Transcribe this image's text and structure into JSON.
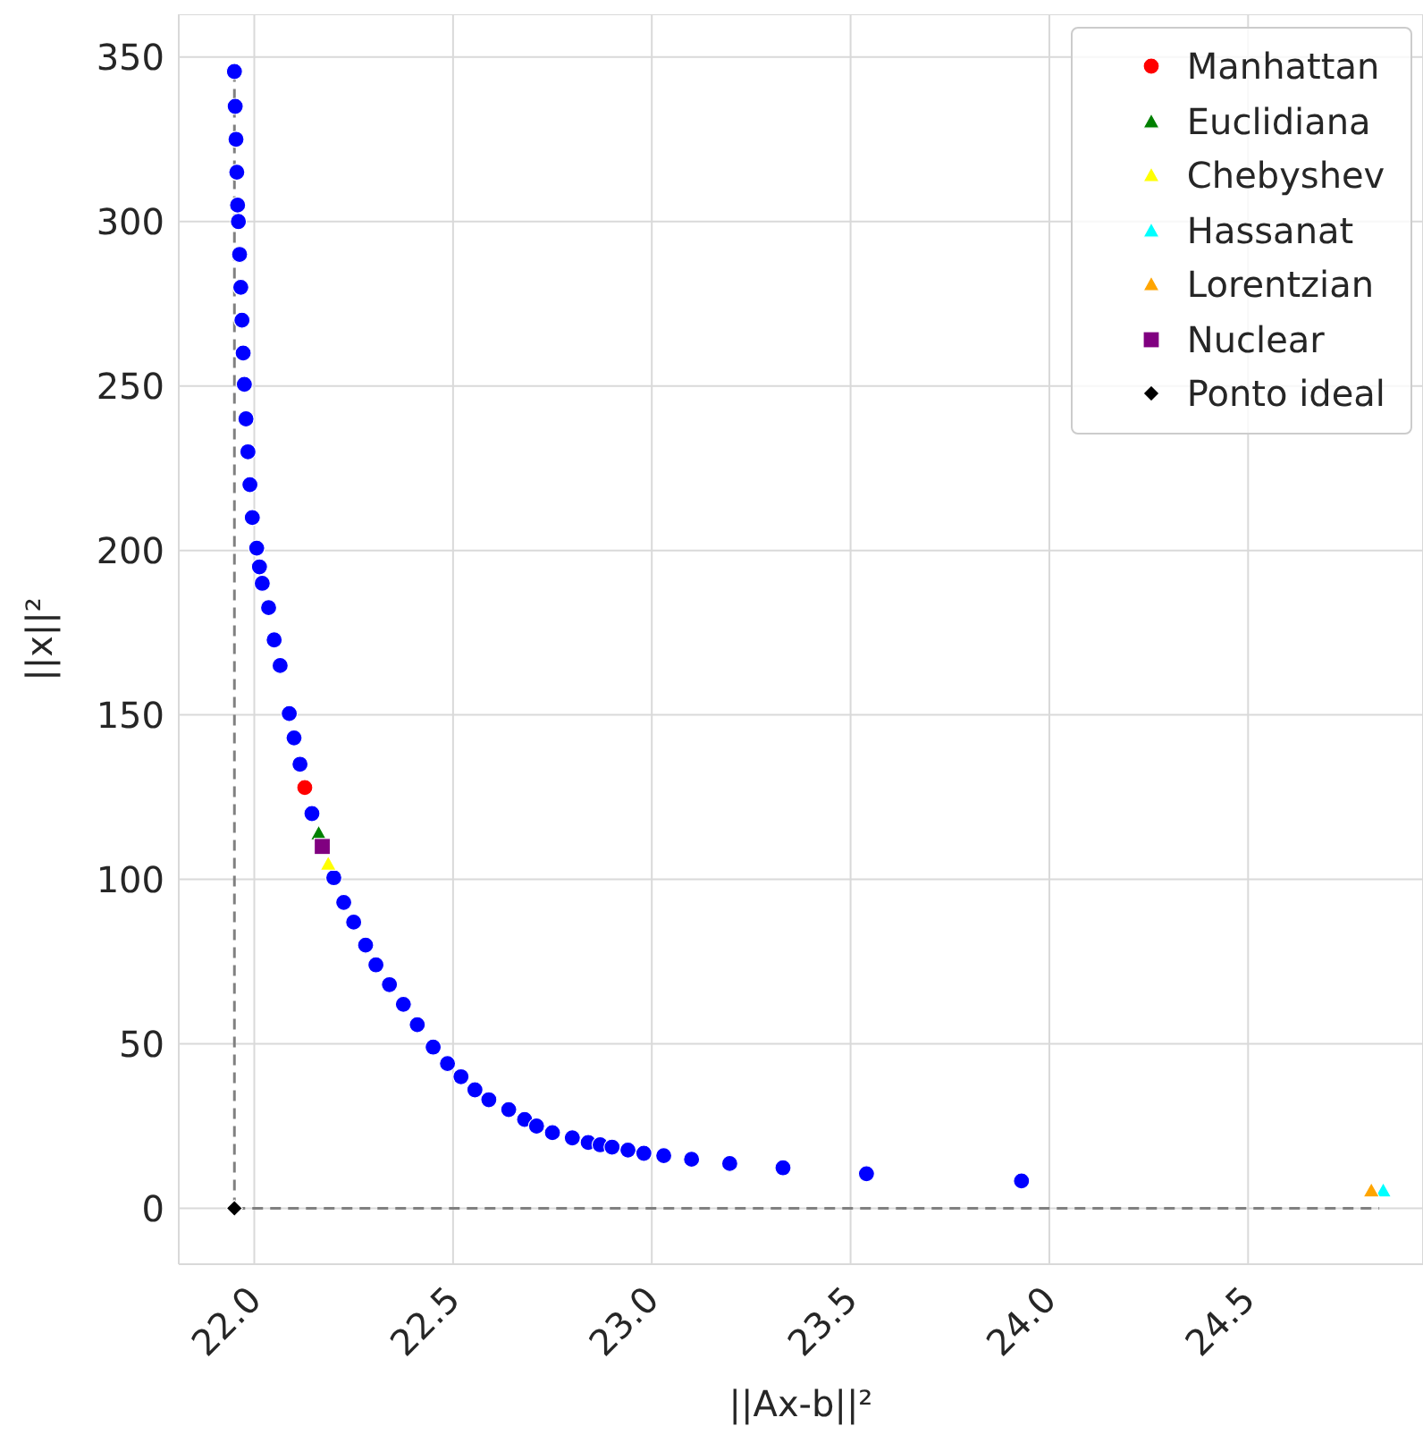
{
  "chart_data": {
    "type": "scatter",
    "xlabel": "||Ax-b||²",
    "ylabel": "||x||²",
    "xlim": [
      21.81,
      24.94
    ],
    "ylim": [
      -17,
      363
    ],
    "xticks": [
      {
        "value": 22,
        "label": "22.0"
      },
      {
        "value": 22.5,
        "label": "22.5"
      },
      {
        "value": 23,
        "label": "23.0"
      },
      {
        "value": 23.5,
        "label": "23.5"
      },
      {
        "value": 24,
        "label": "24.0"
      },
      {
        "value": 24.5,
        "label": "24.5"
      }
    ],
    "yticks": [
      0,
      50,
      100,
      150,
      200,
      250,
      300,
      350
    ],
    "grid": true,
    "legend": "top right",
    "series": [
      {
        "type": "line",
        "color": "#808080",
        "line_style": "dashed",
        "marker": "none",
        "x": [
          21.95,
          21.95
        ],
        "values": [
          0,
          345.6
        ]
      },
      {
        "type": "line",
        "color": "#808080",
        "line_style": "dashed",
        "marker": "none",
        "x": [
          21.95,
          24.83
        ],
        "values": [
          0,
          0
        ]
      },
      {
        "color": "#0000ff",
        "marker": "circle",
        "x": [
          21.95,
          21.952,
          21.954,
          21.956,
          21.958,
          21.96,
          21.963,
          21.966,
          21.969,
          21.972,
          21.975,
          21.979,
          21.984,
          21.989,
          21.995,
          22.006,
          22.013,
          22.02,
          22.036,
          22.05,
          22.065,
          22.088,
          22.1,
          22.115,
          22.145,
          22.2,
          22.225,
          22.25,
          22.28,
          22.306,
          22.34,
          22.375,
          22.41,
          22.45,
          22.486,
          22.52,
          22.555,
          22.59,
          22.64,
          22.68,
          22.71,
          22.75,
          22.8,
          22.84,
          22.87,
          22.9,
          22.94,
          22.98,
          23.03,
          23.1,
          23.196,
          23.33,
          23.54,
          23.93
        ],
        "values": [
          345.6,
          335,
          325,
          315,
          305,
          300,
          290,
          280,
          270,
          260,
          250.5,
          240,
          230,
          220,
          210,
          200.7,
          195,
          190,
          182.6,
          172.8,
          165,
          150.4,
          143,
          135,
          120,
          100.5,
          93,
          87,
          80,
          74,
          68,
          62,
          55.8,
          49,
          44,
          40,
          36,
          33,
          30,
          27,
          25,
          23,
          21.4,
          20,
          19.3,
          18.6,
          17.7,
          16.7,
          16,
          14.9,
          13.6,
          12.3,
          10.5,
          8.3
        ]
      },
      {
        "name": "Manhattan",
        "color": "#ff0000",
        "marker": "circle",
        "x": [
          22.127
        ],
        "values": [
          127.9
        ]
      },
      {
        "name": "Euclidiana",
        "color": "#008000",
        "marker": "triangle",
        "x": [
          22.162
        ],
        "values": [
          114
        ]
      },
      {
        "name": "Chebyshev",
        "color": "#ffff00",
        "marker": "triangle",
        "x": [
          22.186
        ],
        "values": [
          104.7
        ]
      },
      {
        "name": "Hassanat",
        "color": "#00ffff",
        "marker": "triangle",
        "x": [
          24.84
        ],
        "values": [
          5.4
        ]
      },
      {
        "name": "Lorentzian",
        "color": "#ffa500",
        "marker": "triangle",
        "x": [
          24.81
        ],
        "values": [
          5.4
        ]
      },
      {
        "name": "Nuclear",
        "color": "#800080",
        "marker": "square",
        "x": [
          22.171
        ],
        "values": [
          110
        ]
      },
      {
        "name": "Ponto ideal",
        "color": "#000000",
        "marker": "diamond",
        "x": [
          21.95
        ],
        "values": [
          0
        ]
      }
    ]
  }
}
